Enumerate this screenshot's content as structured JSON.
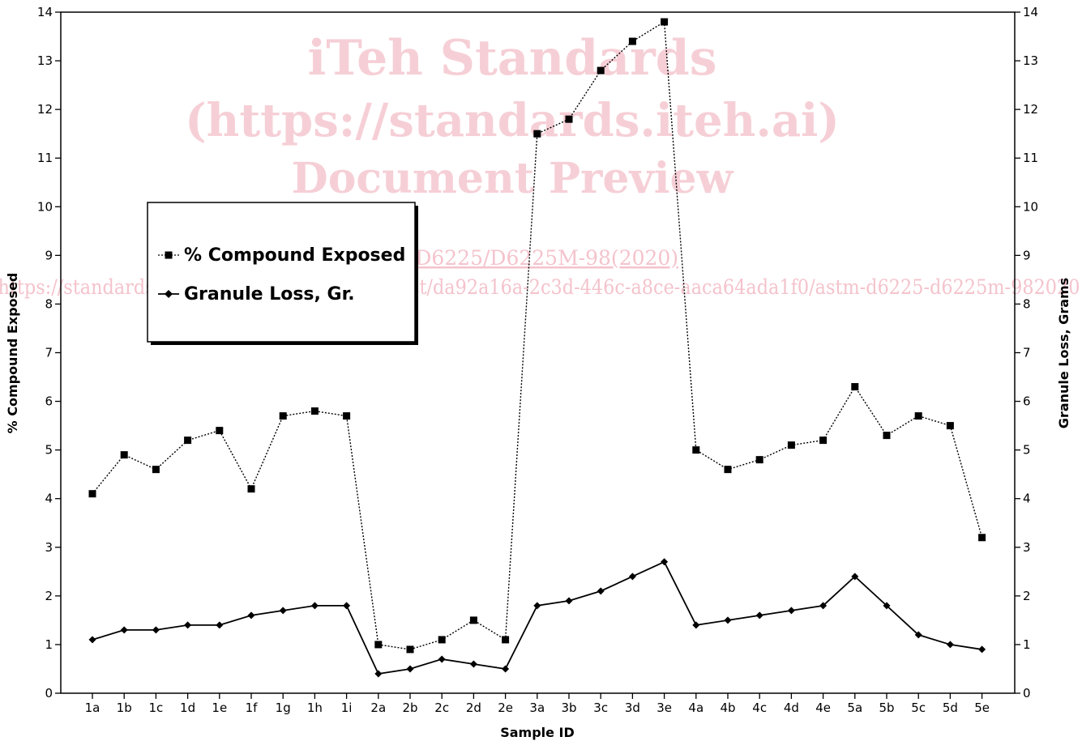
{
  "watermark": {
    "line1": "iTeh Standards",
    "line2": "(https://standards.iteh.ai)",
    "line3": "Document Preview",
    "line4": "ASTM D6225/D6225M-98(2020)",
    "line5": "https://standards.iteh.ai/catalog/standards/sist/da92a16a-2c3d-446c-a8ce-aaca64ada1f0/astm-d6225-d6225m-982020"
  },
  "chart_data": {
    "type": "line",
    "xlabel": "Sample ID",
    "ylabel": "% Compound Exposed",
    "y2label": "Granule Loss, Grams",
    "ylim": [
      0,
      14
    ],
    "y2lim": [
      0,
      14
    ],
    "yticks": [
      "0",
      "1",
      "2",
      "3",
      "4",
      "5",
      "6",
      "7",
      "8",
      "9",
      "10",
      "11",
      "12",
      "13",
      "14"
    ],
    "grid": false,
    "legend_position": "upper-left",
    "categories": [
      "1a",
      "1b",
      "1c",
      "1d",
      "1e",
      "1f",
      "1g",
      "1h",
      "1i",
      "2a",
      "2b",
      "2c",
      "2d",
      "2e",
      "3a",
      "3b",
      "3c",
      "3d",
      "3e",
      "4a",
      "4b",
      "4c",
      "4d",
      "4e",
      "5a",
      "5b",
      "5c",
      "5d",
      "5e"
    ],
    "series": [
      {
        "name": "% Compound Exposed",
        "marker": "square",
        "line_style": "dotted",
        "color": "#000000",
        "values": [
          4.1,
          4.9,
          4.6,
          5.2,
          5.4,
          4.2,
          5.7,
          5.8,
          5.7,
          1.0,
          0.9,
          1.1,
          1.5,
          1.1,
          11.5,
          11.8,
          12.8,
          13.4,
          13.8,
          5.0,
          4.6,
          4.8,
          5.1,
          5.2,
          6.3,
          5.3,
          5.7,
          5.5,
          3.2
        ]
      },
      {
        "name": "Granule Loss, Gr.",
        "marker": "diamond",
        "line_style": "solid",
        "color": "#000000",
        "values": [
          1.1,
          1.3,
          1.3,
          1.4,
          1.4,
          1.6,
          1.7,
          1.8,
          1.8,
          0.4,
          0.5,
          0.7,
          0.6,
          0.5,
          1.8,
          1.9,
          2.1,
          2.4,
          2.7,
          1.4,
          1.5,
          1.6,
          1.7,
          1.8,
          2.4,
          1.8,
          1.2,
          1.0,
          0.9
        ]
      }
    ]
  }
}
